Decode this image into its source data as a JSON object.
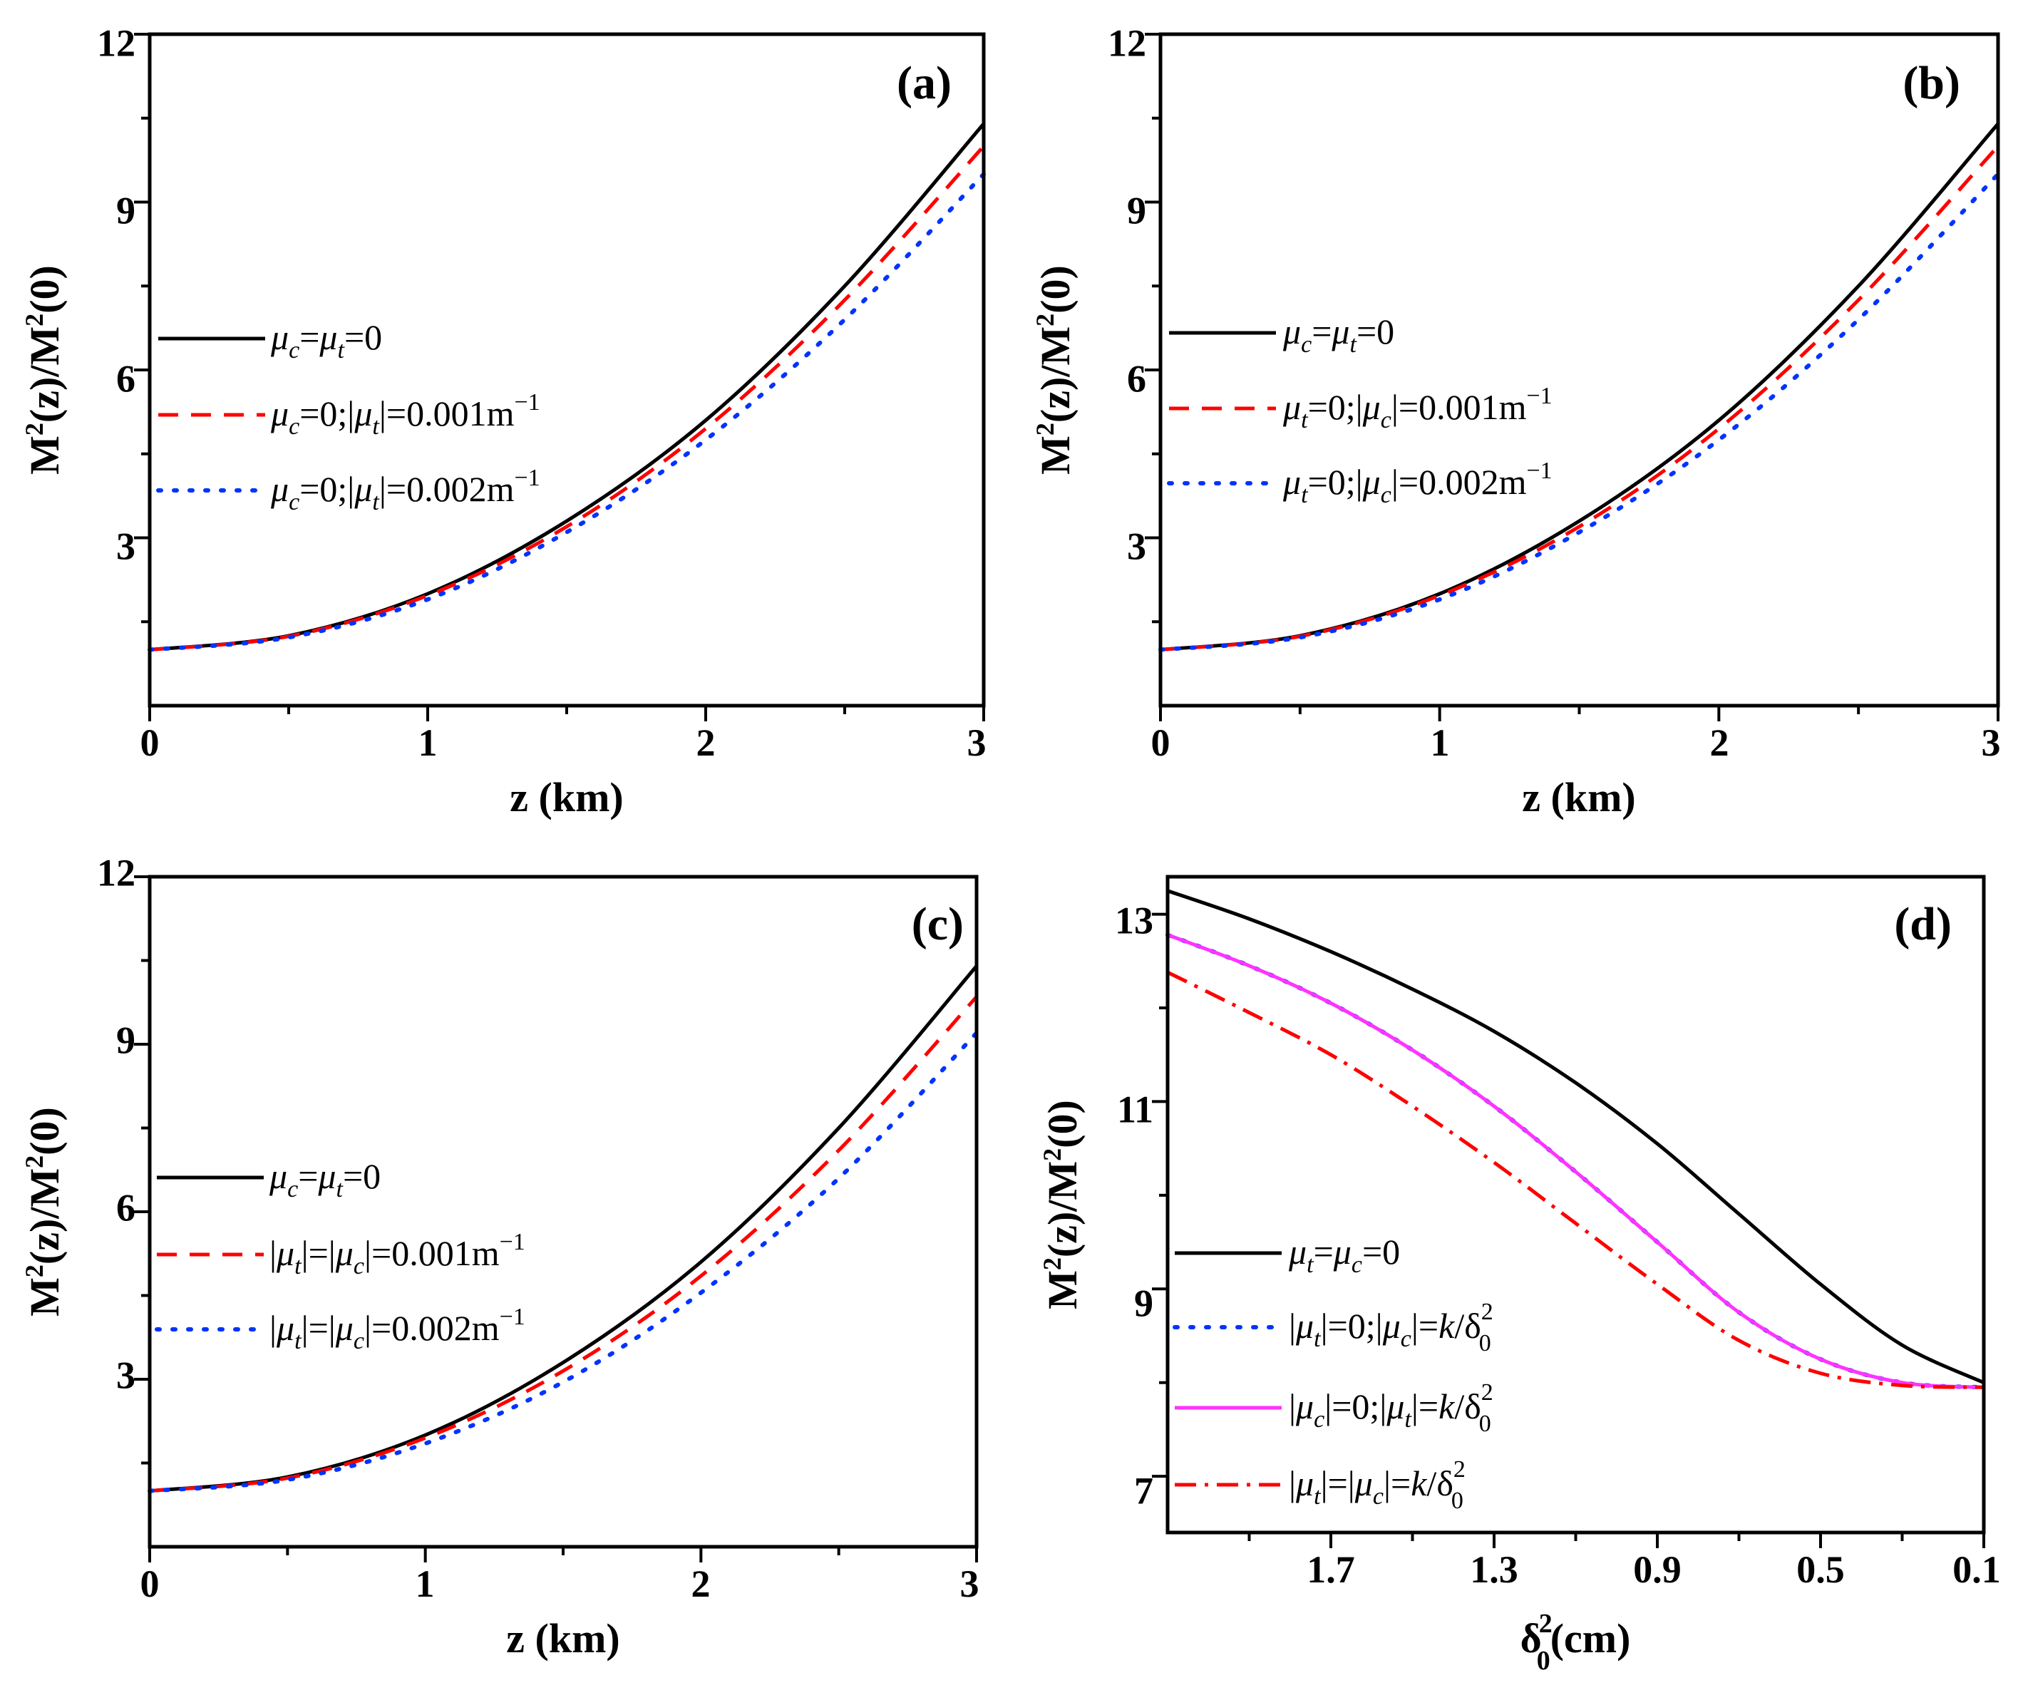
{
  "chart_data": [
    {
      "type": "line",
      "panel_label": "(a)",
      "xlabel": "z (km)",
      "ylabel": "M2(z)/M2(0)",
      "xlim": [
        0,
        3
      ],
      "ylim": [
        0,
        12
      ],
      "xticks": [
        0,
        1,
        2,
        3
      ],
      "xtick_labels": [
        "0",
        "1",
        "2",
        "3"
      ],
      "yticks": [
        3,
        6,
        9,
        12
      ],
      "ytick_labels": [
        "3",
        "6",
        "9",
        "12"
      ],
      "legend_position": "center-left",
      "series": [
        {
          "name": "μc=μt=0",
          "style": "solid",
          "color": "#000000",
          "x": [
            0,
            0.5,
            1,
            1.5,
            2,
            2.5,
            3
          ],
          "y": [
            1.0,
            1.25,
            2.0,
            3.3,
            5.1,
            7.5,
            10.4
          ]
        },
        {
          "name": "μc=0;|μt|=0.001m−1",
          "style": "dashed",
          "color": "#ff0000",
          "x": [
            0,
            0.5,
            1,
            1.5,
            2,
            2.5,
            3
          ],
          "y": [
            1.0,
            1.24,
            1.97,
            3.2,
            4.95,
            7.25,
            10.0
          ]
        },
        {
          "name": "μc=0;|μt|=0.002m−1",
          "style": "dotted",
          "color": "#0033ff",
          "x": [
            0,
            0.5,
            1,
            1.5,
            2,
            2.5,
            3
          ],
          "y": [
            1.0,
            1.22,
            1.9,
            3.1,
            4.75,
            6.9,
            9.5
          ]
        }
      ]
    },
    {
      "type": "line",
      "panel_label": "(b)",
      "xlabel": "z (km)",
      "ylabel": "M2(z)/M2(0)",
      "xlim": [
        0,
        3
      ],
      "ylim": [
        0,
        12
      ],
      "xticks": [
        0,
        1,
        2,
        3
      ],
      "xtick_labels": [
        "0",
        "1",
        "2",
        "3"
      ],
      "yticks": [
        3,
        6,
        9,
        12
      ],
      "ytick_labels": [
        "3",
        "6",
        "9",
        "12"
      ],
      "legend_position": "center-left",
      "series": [
        {
          "name": "μc=μt=0",
          "style": "solid",
          "color": "#000000",
          "x": [
            0,
            0.5,
            1,
            1.5,
            2,
            2.5,
            3
          ],
          "y": [
            1.0,
            1.25,
            2.0,
            3.3,
            5.1,
            7.5,
            10.4
          ]
        },
        {
          "name": "μt=0;|μc|=0.001m−1",
          "style": "dashed",
          "color": "#ff0000",
          "x": [
            0,
            0.5,
            1,
            1.5,
            2,
            2.5,
            3
          ],
          "y": [
            1.0,
            1.24,
            1.97,
            3.2,
            4.95,
            7.25,
            10.0
          ]
        },
        {
          "name": "μt=0;|μc|=0.002m−1",
          "style": "dotted",
          "color": "#0033ff",
          "x": [
            0,
            0.5,
            1,
            1.5,
            2,
            2.5,
            3
          ],
          "y": [
            1.0,
            1.22,
            1.9,
            3.1,
            4.75,
            6.9,
            9.5
          ]
        }
      ]
    },
    {
      "type": "line",
      "panel_label": "(c)",
      "xlabel": "z (km)",
      "ylabel": "M2(z)/M2(0)",
      "xlim": [
        0,
        3
      ],
      "ylim": [
        0,
        12
      ],
      "xticks": [
        0,
        1,
        2,
        3
      ],
      "xtick_labels": [
        "0",
        "1",
        "2",
        "3"
      ],
      "yticks": [
        3,
        6,
        9,
        12
      ],
      "ytick_labels": [
        "3",
        "6",
        "9",
        "12"
      ],
      "legend_position": "center-left",
      "series": [
        {
          "name": "μc=μt=0",
          "style": "solid",
          "color": "#000000",
          "x": [
            0,
            0.5,
            1,
            1.5,
            2,
            2.5,
            3
          ],
          "y": [
            1.0,
            1.25,
            2.0,
            3.3,
            5.1,
            7.5,
            10.4
          ]
        },
        {
          "name": "|μt|=|μc|=0.001m−1",
          "style": "dashed",
          "color": "#ff0000",
          "x": [
            0,
            0.5,
            1,
            1.5,
            2,
            2.5,
            3
          ],
          "y": [
            1.0,
            1.23,
            1.95,
            3.15,
            4.85,
            7.1,
            9.85
          ]
        },
        {
          "name": "|μt|=|μc|=0.002m−1",
          "style": "dotted",
          "color": "#0033ff",
          "x": [
            0,
            0.5,
            1,
            1.5,
            2,
            2.5,
            3
          ],
          "y": [
            1.0,
            1.2,
            1.85,
            2.95,
            4.55,
            6.6,
            9.2
          ]
        }
      ]
    },
    {
      "type": "line",
      "panel_label": "(d)",
      "xlabel": "δ02(cm)",
      "ylabel": "M2(z)/M2(0)",
      "xlim": [
        2.1,
        0.1
      ],
      "x_reversed": true,
      "ylim": [
        6.4,
        13.4
      ],
      "xticks": [
        1.7,
        1.3,
        0.9,
        0.5,
        0.1
      ],
      "xtick_labels": [
        "1.7",
        "1.3",
        "0.9",
        "0.5",
        "0.1"
      ],
      "yticks": [
        7,
        9,
        11,
        13
      ],
      "ytick_labels": [
        "7",
        "9",
        "11",
        "13"
      ],
      "legend_position": "bottom-left",
      "series": [
        {
          "name": "μt=μc=0",
          "style": "solid",
          "color": "#000000",
          "x": [
            2.1,
            1.9,
            1.7,
            1.5,
            1.3,
            1.1,
            0.9,
            0.7,
            0.5,
            0.3,
            0.1
          ],
          "y": [
            13.25,
            12.95,
            12.6,
            12.2,
            11.75,
            11.2,
            10.55,
            9.8,
            9.05,
            8.4,
            8.0
          ]
        },
        {
          "name": "|μt|=0;|μc|=k/δ02",
          "style": "dotted",
          "color": "#0033ff",
          "x": [
            2.1,
            1.9,
            1.7,
            1.5,
            1.3,
            1.1,
            0.9,
            0.7,
            0.5,
            0.3,
            0.1
          ],
          "y": [
            12.78,
            12.45,
            12.05,
            11.55,
            10.95,
            10.25,
            9.5,
            8.75,
            8.25,
            8.0,
            7.95
          ]
        },
        {
          "name": "|μc|=0;|μt|=k/δ02",
          "style": "solid",
          "color": "#ff33ff",
          "x": [
            2.1,
            1.9,
            1.7,
            1.5,
            1.3,
            1.1,
            0.9,
            0.7,
            0.5,
            0.3,
            0.1
          ],
          "y": [
            12.78,
            12.45,
            12.05,
            11.55,
            10.95,
            10.25,
            9.5,
            8.75,
            8.25,
            8.0,
            7.95
          ]
        },
        {
          "name": "|μt|=|μc|=k/δ02",
          "style": "dashdot",
          "color": "#ff0000",
          "x": [
            2.1,
            1.9,
            1.7,
            1.5,
            1.3,
            1.1,
            0.9,
            0.7,
            0.5,
            0.3,
            0.1
          ],
          "y": [
            12.38,
            11.95,
            11.5,
            10.95,
            10.35,
            9.7,
            9.05,
            8.45,
            8.1,
            7.97,
            7.95
          ]
        }
      ]
    }
  ],
  "legends": {
    "a": [
      {
        "mu1": "μ",
        "sub1": "c",
        "eq1": "=",
        "mu2": "μ",
        "sub2": "t",
        "rest": "=0",
        "sup": ""
      },
      {
        "mu1": "μ",
        "sub1": "c",
        "eq1": "=0;|",
        "mu2": "μ",
        "sub2": "t",
        "rest": "|=0.001m",
        "sup": "−1"
      },
      {
        "mu1": "μ",
        "sub1": "c",
        "eq1": "=0;|",
        "mu2": "μ",
        "sub2": "t",
        "rest": "|=0.002m",
        "sup": "−1"
      }
    ],
    "b": [
      {
        "mu1": "μ",
        "sub1": "c",
        "eq1": "=",
        "mu2": "μ",
        "sub2": "t",
        "rest": "=0",
        "sup": ""
      },
      {
        "mu1": "μ",
        "sub1": "t",
        "eq1": "=0;|",
        "mu2": "μ",
        "sub2": "c",
        "rest": "|=0.001m",
        "sup": "−1"
      },
      {
        "mu1": "μ",
        "sub1": "t",
        "eq1": "=0;|",
        "mu2": "μ",
        "sub2": "c",
        "rest": "|=0.002m",
        "sup": "−1"
      }
    ],
    "c": [
      {
        "pre": "",
        "mu1": "μ",
        "sub1": "c",
        "eq1": "=",
        "mu2": "μ",
        "sub2": "t",
        "rest": "=0",
        "sup": ""
      },
      {
        "pre": "|",
        "mu1": "μ",
        "sub1": "t",
        "eq1": "|=|",
        "mu2": "μ",
        "sub2": "c",
        "rest": "|=0.001m",
        "sup": "−1"
      },
      {
        "pre": "|",
        "mu1": "μ",
        "sub1": "t",
        "eq1": "|=|",
        "mu2": "μ",
        "sub2": "c",
        "rest": "|=0.002m",
        "sup": "−1"
      }
    ],
    "d": [
      {
        "pre": "",
        "mu1": "μ",
        "sub1": "t",
        "eq1": "=",
        "mu2": "μ",
        "sub2": "c",
        "rest": "=0",
        "k": "",
        "d": "",
        "dsub": "",
        "dsup": ""
      },
      {
        "pre": "|",
        "mu1": "μ",
        "sub1": "t",
        "eq1": "|=0;|",
        "mu2": "μ",
        "sub2": "c",
        "rest": "|=",
        "k": "k",
        "d": "/δ",
        "dsub": "0",
        "dsup": "2"
      },
      {
        "pre": "|",
        "mu1": "μ",
        "sub1": "c",
        "eq1": "|=0;|",
        "mu2": "μ",
        "sub2": "t",
        "rest": "|=",
        "k": "k",
        "d": "/δ",
        "dsub": "0",
        "dsup": "2"
      },
      {
        "pre": "|",
        "mu1": "μ",
        "sub1": "t",
        "eq1": "|=|",
        "mu2": "μ",
        "sub2": "c",
        "rest": "|=",
        "k": "k",
        "d": "/δ",
        "dsub": "0",
        "dsup": "2"
      }
    ]
  },
  "ylabel_parts": {
    "m1": "M",
    "s1": "2",
    "mid": "(z)/M",
    "s2": "2",
    "end": "(0)"
  },
  "xlabel_d_parts": {
    "base": "δ",
    "sub": "0",
    "sup": "2",
    "unit": "(cm)"
  }
}
